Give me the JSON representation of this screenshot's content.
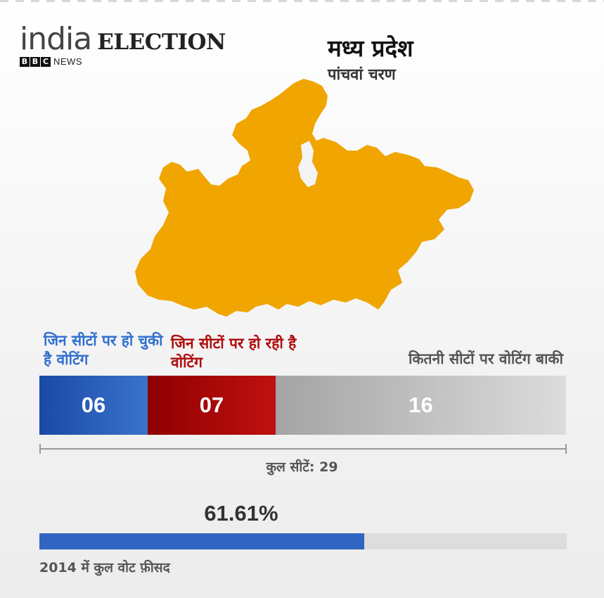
{
  "logo": {
    "india": "india",
    "election": "ELECTION",
    "bbc": [
      "B",
      "B",
      "C"
    ],
    "news": "NEWS"
  },
  "state": {
    "title": "मध्य प्रदेश",
    "phase": "पांचवां चरण"
  },
  "map": {
    "icon": "madhya-pradesh-map",
    "color": "#f0a500"
  },
  "chart_data": {
    "type": "bar",
    "categories": [
      "जिन सीटों पर हो चुकी है वोटिंग",
      "जिन सीटों पर हो रही है वोटिंग",
      "कितनी सीटों पर वोटिंग बाकी"
    ],
    "values": [
      "06",
      "07",
      "16"
    ],
    "colors": [
      "#2f6fd0",
      "#b00b0b",
      "#aaaaaa"
    ],
    "total_label": "कुल सीटें: 29",
    "turnout": {
      "value": 61.61,
      "display": "61.61%",
      "label": "2014 में कुल वोट फ़ीसद"
    }
  }
}
